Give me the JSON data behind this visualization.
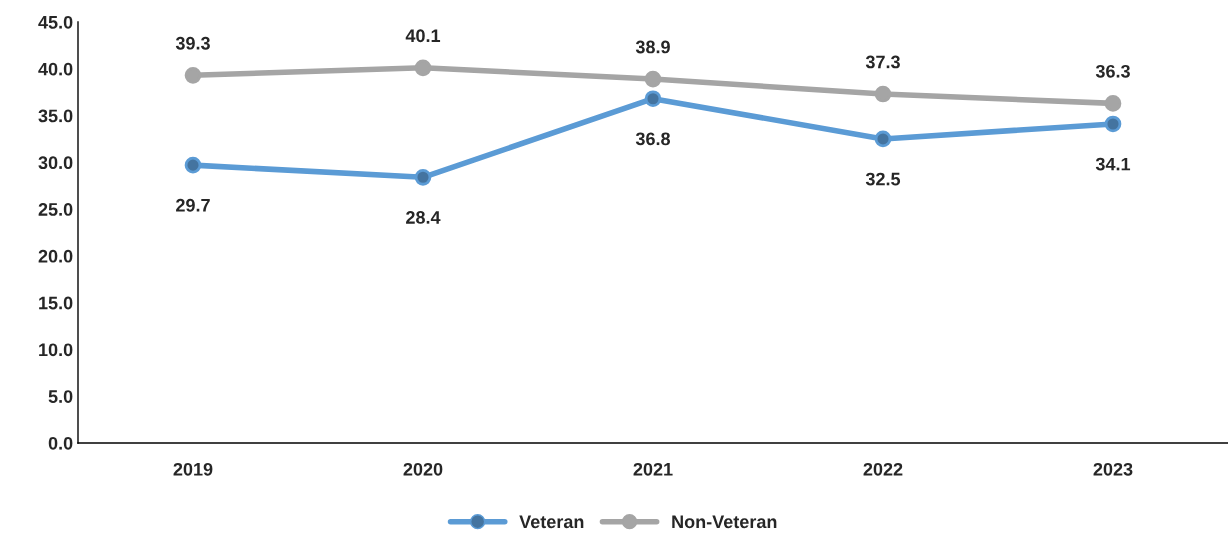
{
  "chart_data": {
    "type": "line",
    "categories": [
      "2019",
      "2020",
      "2021",
      "2022",
      "2023"
    ],
    "series": [
      {
        "name": "Veteran",
        "color": "#5b9bd5",
        "values": [
          29.7,
          28.4,
          36.8,
          32.5,
          34.1
        ]
      },
      {
        "name": "Non-Veteran",
        "color": "#a5a5a5",
        "values": [
          39.3,
          40.1,
          38.9,
          37.3,
          36.3
        ]
      }
    ],
    "ylim": [
      0,
      45
    ],
    "yticks": [
      {
        "value": 0,
        "label": "0.0"
      },
      {
        "value": 5,
        "label": "5.0"
      },
      {
        "value": 10,
        "label": "10.0"
      },
      {
        "value": 15,
        "label": "15.0"
      },
      {
        "value": 20,
        "label": "20.0"
      },
      {
        "value": 25,
        "label": "25.0"
      },
      {
        "value": 30,
        "label": "30.0"
      },
      {
        "value": 35,
        "label": "35.0"
      },
      {
        "value": 40,
        "label": "40.0"
      },
      {
        "value": 45,
        "label": "45.0"
      }
    ],
    "grid": false,
    "legend": "bottom",
    "marker": "circle",
    "line_style": "solid",
    "data_labels": true
  }
}
